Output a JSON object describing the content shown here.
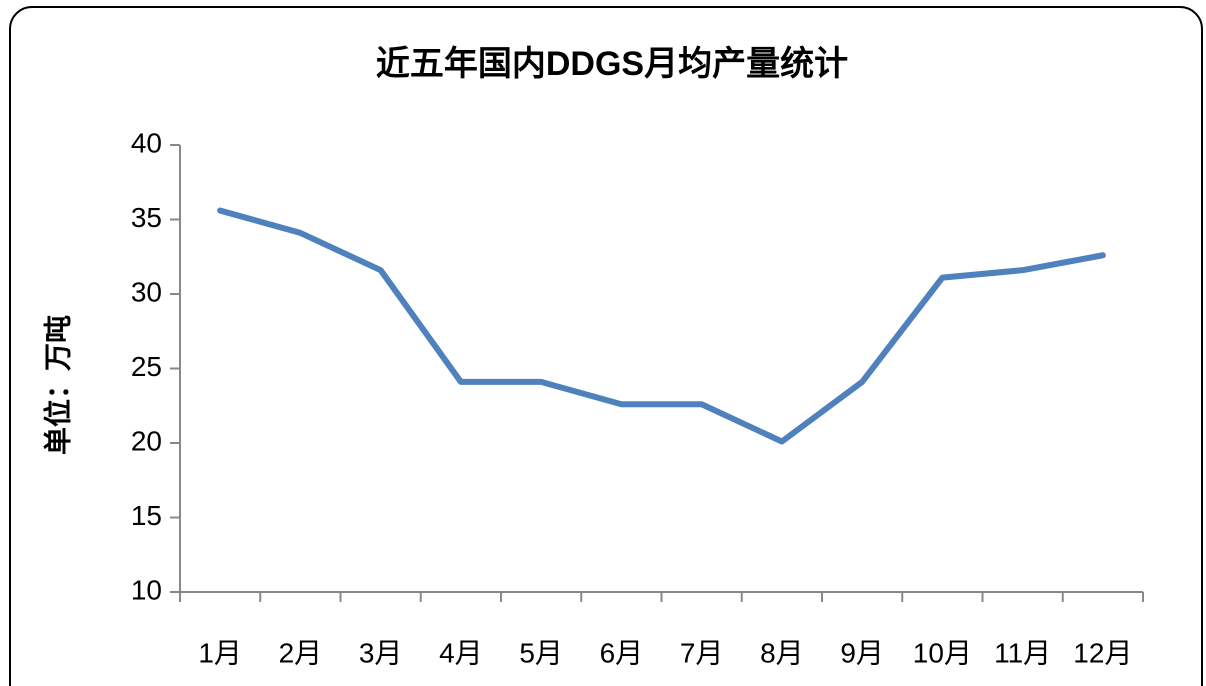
{
  "chart_data": {
    "type": "line",
    "title": "近五年国内DDGS月均产量统计",
    "y_label": "单位：万吨",
    "categories": [
      "1月",
      "2月",
      "3月",
      "4月",
      "5月",
      "6月",
      "7月",
      "8月",
      "9月",
      "10月",
      "11月",
      "12月"
    ],
    "series": [
      {
        "name": "月均产量",
        "color": "#4f81bd",
        "values": [
          35.6,
          34.1,
          31.6,
          24.1,
          24.1,
          22.6,
          22.6,
          20.1,
          24.1,
          31.1,
          31.6,
          32.6
        ]
      }
    ],
    "ylim": [
      10,
      40
    ],
    "yticks": [
      10,
      15,
      20,
      25,
      30,
      35,
      40
    ],
    "grid": false,
    "legend": false
  }
}
